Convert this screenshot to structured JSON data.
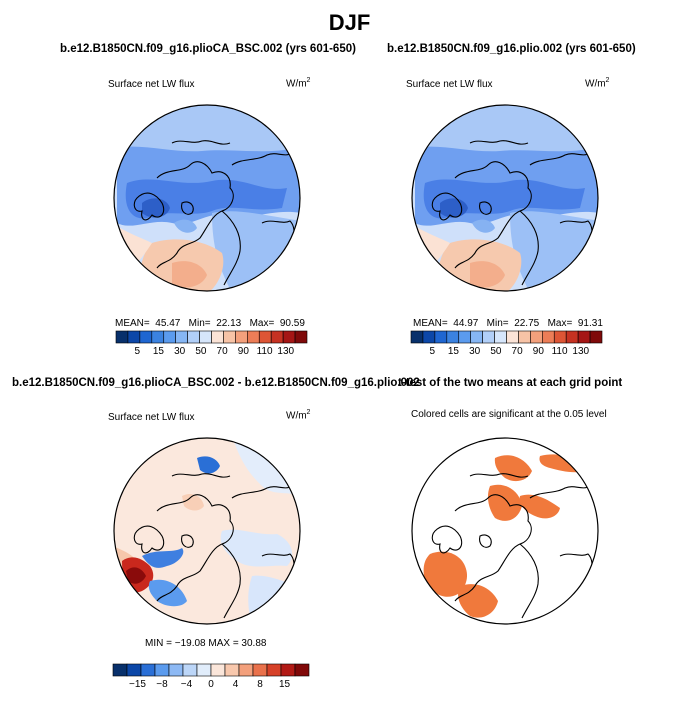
{
  "page": {
    "title": "DJF"
  },
  "chart_data": [
    {
      "type": "heatmap",
      "projection": "north-polar-stereographic",
      "case_title": "b.e12.B1850CN.f09_g16.plioCA_BSC.002 (yrs 601-650)",
      "variable": "Surface net LW flux",
      "units": "W/m",
      "units_sup": "2",
      "stats": {
        "mean_label": "MEAN=",
        "mean": "45.47",
        "min_label": "Min=",
        "min": "22.13",
        "max_label": "Max=",
        "max": "90.59"
      },
      "colorbar": {
        "ticks": [
          "5",
          "15",
          "30",
          "50",
          "70",
          "90",
          "110",
          "130"
        ],
        "colors": [
          "#08306b",
          "#0c47a8",
          "#1f66d1",
          "#3b82e0",
          "#5b9bee",
          "#86b6f4",
          "#b1cff8",
          "#d6e6fb",
          "#fbe3d6",
          "#f7c3a6",
          "#f3a07c",
          "#ec7d57",
          "#dd5535",
          "#c63222",
          "#a51615",
          "#7f0a0a"
        ]
      }
    },
    {
      "type": "heatmap",
      "projection": "north-polar-stereographic",
      "case_title": "b.e12.B1850CN.f09_g16.plio.002 (yrs 601-650)",
      "variable": "Surface net LW flux",
      "units": "W/m",
      "units_sup": "2",
      "stats": {
        "mean_label": "MEAN=",
        "mean": "44.97",
        "min_label": "Min=",
        "min": "22.75",
        "max_label": "Max=",
        "max": "91.31"
      },
      "colorbar": {
        "ticks": [
          "5",
          "15",
          "30",
          "50",
          "70",
          "90",
          "110",
          "130"
        ],
        "colors": [
          "#08306b",
          "#0c47a8",
          "#1f66d1",
          "#3b82e0",
          "#5b9bee",
          "#86b6f4",
          "#b1cff8",
          "#d6e6fb",
          "#fbe3d6",
          "#f7c3a6",
          "#f3a07c",
          "#ec7d57",
          "#dd5535",
          "#c63222",
          "#a51615",
          "#7f0a0a"
        ]
      }
    },
    {
      "type": "heatmap",
      "projection": "north-polar-stereographic",
      "case_title": "b.e12.B1850CN.f09_g16.plioCA_BSC.002 - b.e12.B1850CN.f09_g16.plio.002",
      "variable": "Surface net LW flux",
      "units": "W/m",
      "units_sup": "2",
      "stats": {
        "text": "MIN = −19.08  MAX =  30.88"
      },
      "colorbar": {
        "ticks": [
          "−15",
          "−8",
          "−4",
          "0",
          "4",
          "8",
          "15"
        ],
        "colors": [
          "#08306b",
          "#0c47a8",
          "#2a6fd6",
          "#5b9bee",
          "#8db9f4",
          "#bcd6f8",
          "#e1edfb",
          "#fbe6da",
          "#f8c8ad",
          "#f3a07c",
          "#e9714b",
          "#d64128",
          "#b21a15",
          "#800808"
        ]
      }
    },
    {
      "type": "heatmap",
      "projection": "north-polar-stereographic",
      "case_title": "t-test of the two means at each grid point",
      "variable": "Colored cells are significant at the 0.05 level",
      "colors": {
        "significant": "#f0793c"
      }
    }
  ]
}
